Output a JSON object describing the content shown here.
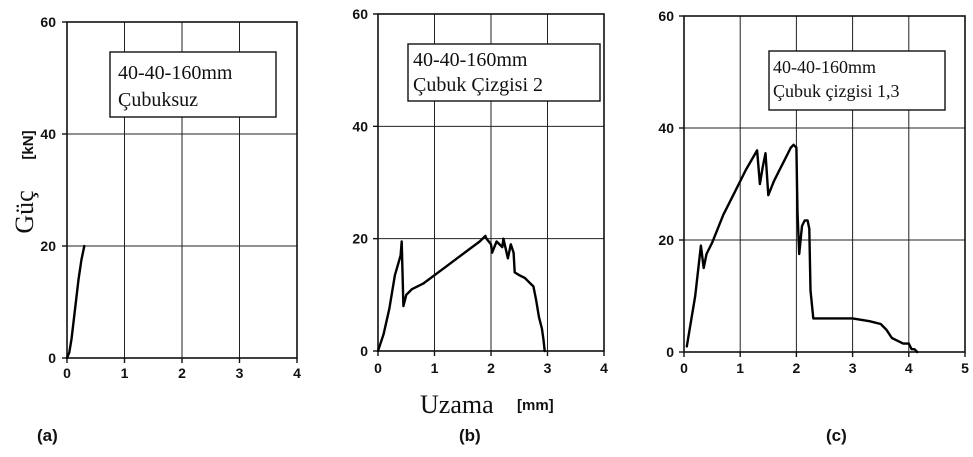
{
  "figure": {
    "y_title": "Güç",
    "y_unit": "[kN]",
    "x_title": "Uzama",
    "x_unit": "[mm]"
  },
  "chart_data": [
    {
      "type": "line",
      "panel_label": "(a)",
      "box_lines": [
        "40-40-160mm",
        "Çubuksuz"
      ],
      "xlabel": "Uzama [mm]",
      "ylabel": "Güç [kN]",
      "xlim": [
        0,
        4
      ],
      "ylim": [
        0,
        60
      ],
      "xticks": [
        "0",
        "1",
        "2",
        "3",
        "4"
      ],
      "yticks": [
        "0",
        "20",
        "40",
        "60"
      ],
      "grid": true,
      "series": [
        {
          "x": [
            0.0,
            0.04,
            0.08,
            0.12,
            0.16,
            0.2,
            0.25,
            0.3
          ],
          "y": [
            0.0,
            1.0,
            3.5,
            7.0,
            10.5,
            14.0,
            17.5,
            20.0
          ]
        }
      ]
    },
    {
      "type": "line",
      "panel_label": "(b)",
      "box_lines": [
        "40-40-160mm",
        "Çubuk Çizgisi 2"
      ],
      "xlabel": "Uzama [mm]",
      "ylabel": "Güç [kN]",
      "xlim": [
        0,
        4
      ],
      "ylim": [
        0,
        60
      ],
      "xticks": [
        "0",
        "1",
        "2",
        "3",
        "4"
      ],
      "yticks": [
        "0",
        "20",
        "40",
        "60"
      ],
      "grid": true,
      "series": [
        {
          "x": [
            0.0,
            0.1,
            0.2,
            0.3,
            0.4,
            0.42,
            0.45,
            0.5,
            0.55,
            0.6,
            0.8,
            1.0,
            1.2,
            1.4,
            1.6,
            1.8,
            1.9,
            1.92,
            2.0,
            2.02,
            2.1,
            2.2,
            2.22,
            2.3,
            2.35,
            2.4,
            2.42,
            2.5,
            2.6,
            2.65,
            2.7,
            2.75,
            2.8,
            2.85,
            2.9,
            2.93,
            2.95
          ],
          "y": [
            0.0,
            3.0,
            7.5,
            13.5,
            17.0,
            19.5,
            8.0,
            10.0,
            10.5,
            11.0,
            12.0,
            13.5,
            15.0,
            16.5,
            18.0,
            19.5,
            20.5,
            20.0,
            19.0,
            17.5,
            19.5,
            18.5,
            20.0,
            16.5,
            19.0,
            17.5,
            14.0,
            13.5,
            13.0,
            12.5,
            12.0,
            11.5,
            9.0,
            6.0,
            4.0,
            2.0,
            0.0
          ]
        }
      ]
    },
    {
      "type": "line",
      "panel_label": "(c)",
      "box_lines": [
        "40-40-160mm",
        "Çubuk çizgisi 1,3"
      ],
      "xlabel": "Uzama [mm]",
      "ylabel": "Güç [kN]",
      "xlim": [
        0,
        5
      ],
      "ylim": [
        0,
        60
      ],
      "xticks": [
        "0",
        "1",
        "2",
        "3",
        "4",
        "5"
      ],
      "yticks": [
        "0",
        "20",
        "40",
        "60"
      ],
      "grid": true,
      "series": [
        {
          "x": [
            0.05,
            0.2,
            0.3,
            0.35,
            0.4,
            0.45,
            0.5,
            0.7,
            0.9,
            1.1,
            1.3,
            1.35,
            1.4,
            1.45,
            1.5,
            1.6,
            1.7,
            1.8,
            1.9,
            1.95,
            2.0,
            2.02,
            2.05,
            2.1,
            2.15,
            2.2,
            2.23,
            2.25,
            2.3,
            2.5,
            2.8,
            3.0,
            3.3,
            3.5,
            3.6,
            3.7,
            3.8,
            3.9,
            4.0,
            4.05,
            4.1,
            4.15
          ],
          "y": [
            1.0,
            10.0,
            19.0,
            15.0,
            17.5,
            18.5,
            19.5,
            24.5,
            28.5,
            32.5,
            36.0,
            30.0,
            33.0,
            35.5,
            28.0,
            30.5,
            32.5,
            34.5,
            36.5,
            37.0,
            36.5,
            25.0,
            17.5,
            22.5,
            23.5,
            23.5,
            22.0,
            11.0,
            6.0,
            6.0,
            6.0,
            6.0,
            5.5,
            5.0,
            4.0,
            2.5,
            2.0,
            1.5,
            1.5,
            0.5,
            0.5,
            0.0
          ]
        }
      ]
    }
  ]
}
